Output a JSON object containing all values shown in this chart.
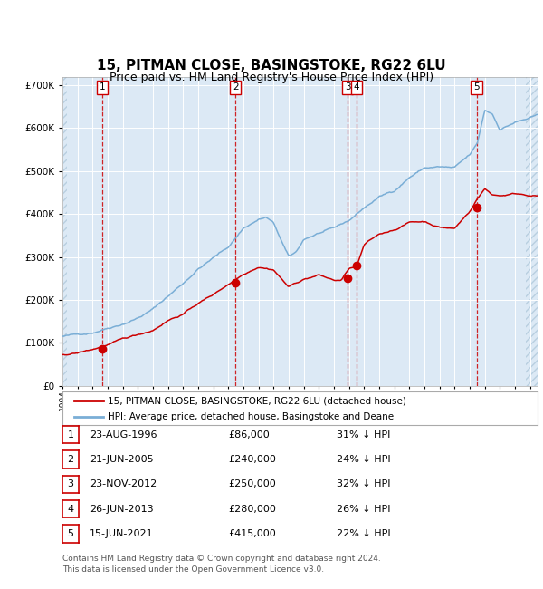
{
  "title": "15, PITMAN CLOSE, BASINGSTOKE, RG22 6LU",
  "subtitle": "Price paid vs. HM Land Registry's House Price Index (HPI)",
  "title_fontsize": 11,
  "subtitle_fontsize": 9,
  "background_color": "#ffffff",
  "plot_bg_color": "#dce9f5",
  "hatch_color": "#b8cfe0",
  "grid_color": "#ffffff",
  "hpi_color": "#7aaed6",
  "price_color": "#cc0000",
  "marker_color": "#cc0000",
  "dashed_line_color": "#cc0000",
  "ylim": [
    0,
    720000
  ],
  "yticks": [
    0,
    100000,
    200000,
    300000,
    400000,
    500000,
    600000,
    700000
  ],
  "ytick_labels": [
    "£0",
    "£100K",
    "£200K",
    "£300K",
    "£400K",
    "£500K",
    "£600K",
    "£700K"
  ],
  "xstart": 1994.0,
  "xend": 2025.5,
  "transactions": [
    {
      "num": 1,
      "date_num": 1996.64,
      "price": 86000,
      "label": "1"
    },
    {
      "num": 2,
      "date_num": 2005.47,
      "price": 240000,
      "label": "2"
    },
    {
      "num": 3,
      "date_num": 2012.9,
      "price": 250000,
      "label": "3"
    },
    {
      "num": 4,
      "date_num": 2013.49,
      "price": 280000,
      "label": "4"
    },
    {
      "num": 5,
      "date_num": 2021.46,
      "price": 415000,
      "label": "5"
    }
  ],
  "legend_entries": [
    {
      "label": "15, PITMAN CLOSE, BASINGSTOKE, RG22 6LU (detached house)",
      "color": "#cc0000"
    },
    {
      "label": "HPI: Average price, detached house, Basingstoke and Deane",
      "color": "#7aaed6"
    }
  ],
  "table_rows": [
    {
      "num": "1",
      "date": "23-AUG-1996",
      "price": "£86,000",
      "hpi": "31% ↓ HPI"
    },
    {
      "num": "2",
      "date": "21-JUN-2005",
      "price": "£240,000",
      "hpi": "24% ↓ HPI"
    },
    {
      "num": "3",
      "date": "23-NOV-2012",
      "price": "£250,000",
      "hpi": "32% ↓ HPI"
    },
    {
      "num": "4",
      "date": "26-JUN-2013",
      "price": "£280,000",
      "hpi": "26% ↓ HPI"
    },
    {
      "num": "5",
      "date": "15-JUN-2021",
      "price": "£415,000",
      "hpi": "22% ↓ HPI"
    }
  ],
  "footnote_line1": "Contains HM Land Registry data © Crown copyright and database right 2024.",
  "footnote_line2": "This data is licensed under the Open Government Licence v3.0."
}
